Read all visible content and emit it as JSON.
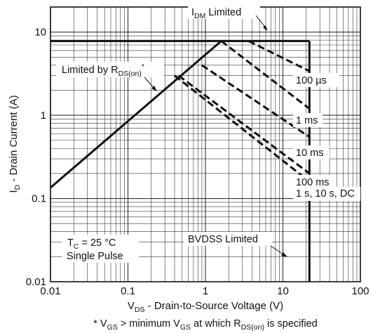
{
  "chart_data": {
    "type": "line",
    "x_scale": "log",
    "y_scale": "log",
    "xlim": [
      0.01,
      100
    ],
    "ylim": [
      0.01,
      20
    ],
    "grid": true,
    "xlabel": {
      "main": "V",
      "sub": "DS",
      "rest": " - Drain-to-Source Voltage (V)"
    },
    "ylabel": {
      "main": "I",
      "sub": "D",
      "rest": " - Drain Current (A)"
    },
    "x_ticks": [
      {
        "value": 0.01,
        "label": "0.01"
      },
      {
        "value": 0.1,
        "label": "0.1"
      },
      {
        "value": 1,
        "label": "1"
      },
      {
        "value": 10,
        "label": "10"
      },
      {
        "value": 100,
        "label": "100"
      }
    ],
    "y_ticks": [
      {
        "value": 0.01,
        "label": "0.01"
      },
      {
        "value": 0.1,
        "label": "0.1"
      },
      {
        "value": 1,
        "label": "1"
      },
      {
        "value": 10,
        "label": "10"
      }
    ],
    "series": [
      {
        "style": "solid",
        "x": [
          0.01,
          1.6
        ],
        "y": [
          0.135,
          7.8
        ]
      },
      {
        "style": "solid",
        "x": [
          0.01,
          22
        ],
        "y": [
          7.8,
          7.8
        ]
      },
      {
        "style": "solid",
        "x": [
          22,
          22
        ],
        "y": [
          7.8,
          0.01
        ]
      },
      {
        "name": "100 µs",
        "style": "dashed",
        "x": [
          3.6,
          22
        ],
        "y": [
          7.8,
          3.4
        ]
      },
      {
        "name": "1 ms",
        "style": "dashed",
        "x": [
          1.6,
          22
        ],
        "y": [
          7.8,
          1.2
        ]
      },
      {
        "name": "10 ms",
        "style": "dashed",
        "x": [
          0.9,
          22
        ],
        "y": [
          4.0,
          0.55
        ]
      },
      {
        "name": "100 ms",
        "style": "dashed",
        "x": [
          0.45,
          22
        ],
        "y": [
          3.0,
          0.2
        ]
      },
      {
        "name": "1 s, 10 s, DC",
        "style": "dashed",
        "x": [
          0.4,
          22
        ],
        "y": [
          3.0,
          0.16
        ]
      }
    ],
    "annotations": {
      "idm": {
        "main": "I",
        "sub": "DM",
        "rest": " Limited"
      },
      "rds": {
        "main": "Limited by R",
        "sub": "DS(on)",
        "sup": "*"
      },
      "tc": {
        "main": "T",
        "sub": "C",
        "rest": " = 25 °C"
      },
      "pulse": "Single Pulse",
      "bvdss": "BVDSS Limited",
      "l100us": "100 µs",
      "l1ms": "1 ms",
      "l10ms": "10 ms",
      "l100ms": "100 ms",
      "ldc": "1 s, 10 s, DC"
    },
    "footnote": {
      "p1": "* V",
      "s1": "GS",
      "p2": " > minimum V",
      "s2": "GS",
      "p3": " at which R",
      "s3": "DS(on)",
      "p4": " is specified"
    }
  }
}
